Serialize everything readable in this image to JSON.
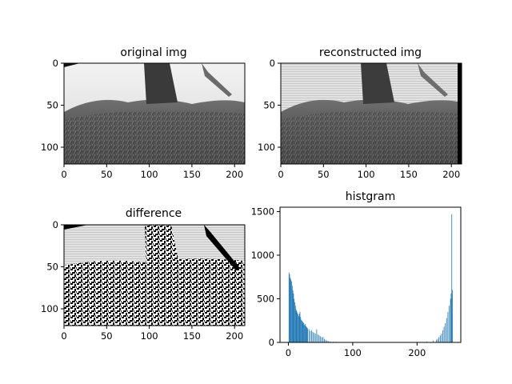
{
  "chart_data": [
    {
      "type": "image",
      "title": "original img",
      "xlim": [
        0,
        212
      ],
      "ylim": [
        120,
        0
      ],
      "xticks": [
        0,
        50,
        100,
        150,
        200
      ],
      "yticks": [
        0,
        50,
        100
      ]
    },
    {
      "type": "image",
      "title": "reconstructed img",
      "xlim": [
        0,
        212
      ],
      "ylim": [
        120,
        0
      ],
      "xticks": [
        0,
        50,
        100,
        150,
        200
      ],
      "yticks": [
        0,
        50,
        100
      ]
    },
    {
      "type": "image",
      "title": "difference",
      "xlim": [
        0,
        212
      ],
      "ylim": [
        120,
        0
      ],
      "xticks": [
        0,
        50,
        100,
        150,
        200
      ],
      "yticks": [
        0,
        50,
        100
      ]
    },
    {
      "type": "bar",
      "title": "histgram",
      "xlim": [
        -13,
        268
      ],
      "ylim": [
        0,
        1550
      ],
      "xticks": [
        0,
        100,
        200
      ],
      "yticks": [
        0,
        500,
        1000,
        1500
      ],
      "bar_color": "#1f77b4",
      "x": [
        1,
        2,
        3,
        4,
        5,
        6,
        7,
        8,
        9,
        10,
        11,
        12,
        13,
        14,
        15,
        16,
        17,
        18,
        19,
        20,
        21,
        22,
        23,
        24,
        25,
        26,
        27,
        28,
        29,
        30,
        32,
        34,
        36,
        38,
        40,
        42,
        44,
        46,
        48,
        50,
        52,
        54,
        56,
        58,
        60,
        62,
        65,
        70,
        75,
        80,
        85,
        90,
        95,
        100,
        120,
        150,
        180,
        200,
        215,
        225,
        230,
        232,
        234,
        236,
        238,
        240,
        242,
        244,
        246,
        248,
        250,
        252,
        253,
        254,
        255
      ],
      "values": [
        800,
        780,
        740,
        720,
        700,
        650,
        600,
        560,
        500,
        460,
        420,
        380,
        360,
        340,
        320,
        300,
        330,
        350,
        290,
        260,
        250,
        240,
        230,
        220,
        200,
        210,
        190,
        180,
        170,
        160,
        150,
        130,
        140,
        120,
        110,
        100,
        150,
        90,
        80,
        70,
        60,
        60,
        40,
        30,
        20,
        15,
        10,
        8,
        6,
        5,
        4,
        3,
        2,
        1,
        0,
        0,
        0,
        5,
        10,
        20,
        30,
        40,
        60,
        80,
        100,
        140,
        180,
        220,
        280,
        350,
        420,
        500,
        560,
        1470,
        600
      ]
    }
  ]
}
